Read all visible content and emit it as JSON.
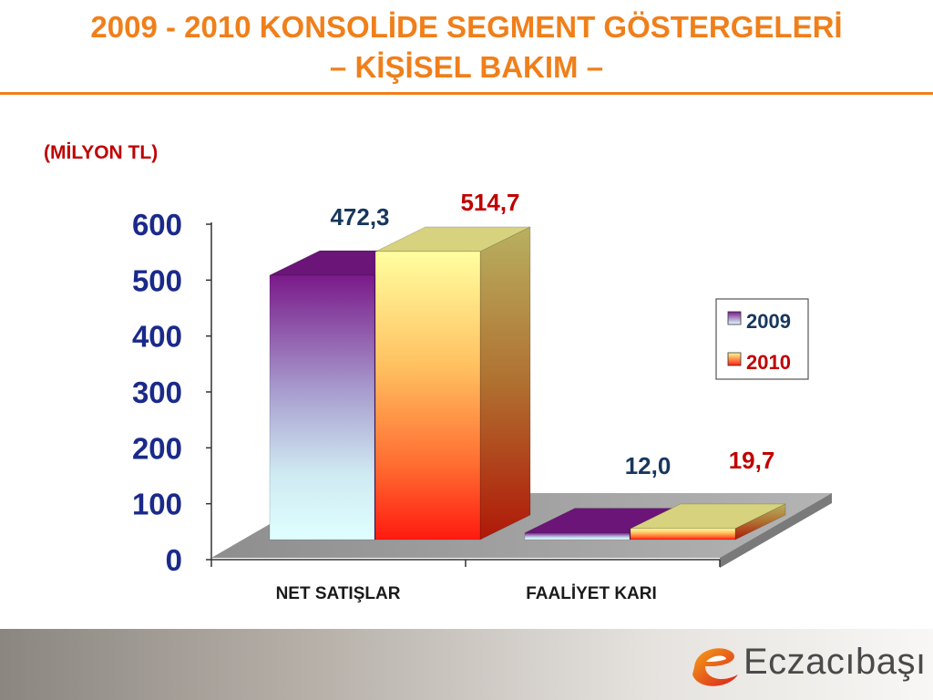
{
  "header": {
    "title_line1": "2009 - 2010 KONSOLİDE SEGMENT GÖSTERGELERİ",
    "title_line2": "– KİŞİSEL BAKIM –",
    "unit_note": "(MİLYON  TL)"
  },
  "colors": {
    "title": "#f07f1a",
    "series_2009_label": "#17375e",
    "series_2010_label": "#c00000"
  },
  "chart_data": {
    "type": "bar",
    "categories": [
      "NET  SATIŞLAR",
      "FAALİYET KARI"
    ],
    "series": [
      {
        "name": "2009",
        "values": [
          472.3,
          12.0
        ],
        "labels": [
          "472,3",
          "12,0"
        ]
      },
      {
        "name": "2010",
        "values": [
          514.7,
          19.7
        ],
        "labels": [
          "514,7",
          "19,7"
        ]
      }
    ],
    "ylim": [
      0,
      600
    ],
    "yticks": [
      "0",
      "100",
      "200",
      "300",
      "400",
      "500",
      "600"
    ],
    "legend_position": "right",
    "grid": false
  },
  "footer": {
    "brand": "Eczacıbaşı",
    "logo_icon": "eczacibasi-e-logo-icon"
  }
}
